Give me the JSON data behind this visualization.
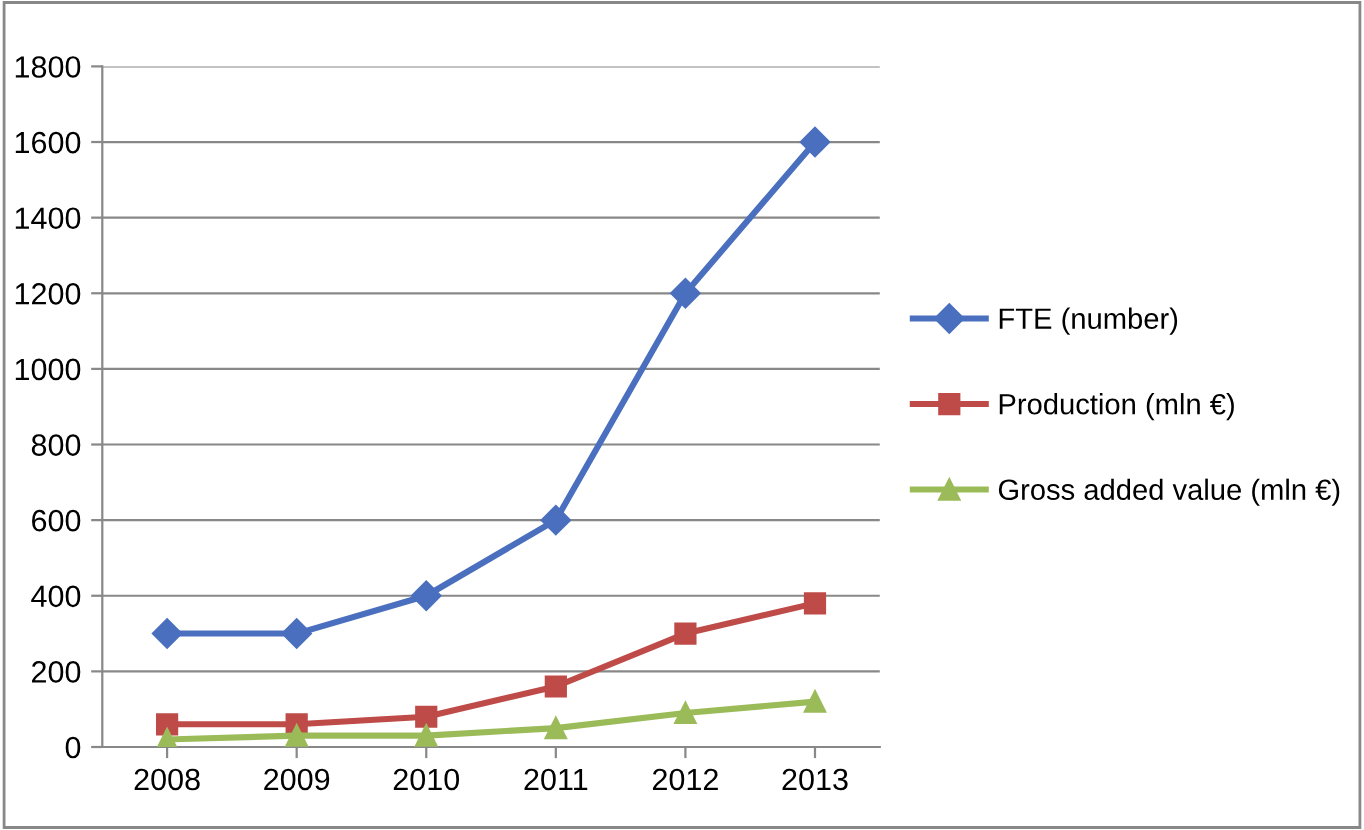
{
  "chart_data": {
    "type": "line",
    "categories": [
      "2008",
      "2009",
      "2010",
      "2011",
      "2012",
      "2013"
    ],
    "series": [
      {
        "name": "FTE (number)",
        "color": "#4a6fbe",
        "marker": "diamond",
        "values": [
          300,
          300,
          400,
          600,
          1200,
          1600
        ]
      },
      {
        "name": "Production (mln €)",
        "color": "#be4b48",
        "marker": "square",
        "values": [
          60,
          60,
          80,
          160,
          300,
          380
        ]
      },
      {
        "name": "Gross added value (mln €)",
        "color": "#9bbb59",
        "marker": "triangle",
        "values": [
          20,
          30,
          30,
          50,
          90,
          120
        ]
      }
    ],
    "ylim": [
      0,
      1800
    ],
    "yticks": [
      0,
      200,
      400,
      600,
      800,
      1000,
      1200,
      1400,
      1600,
      1800
    ],
    "grid": "y",
    "legend": "right",
    "line_style": "solid"
  }
}
